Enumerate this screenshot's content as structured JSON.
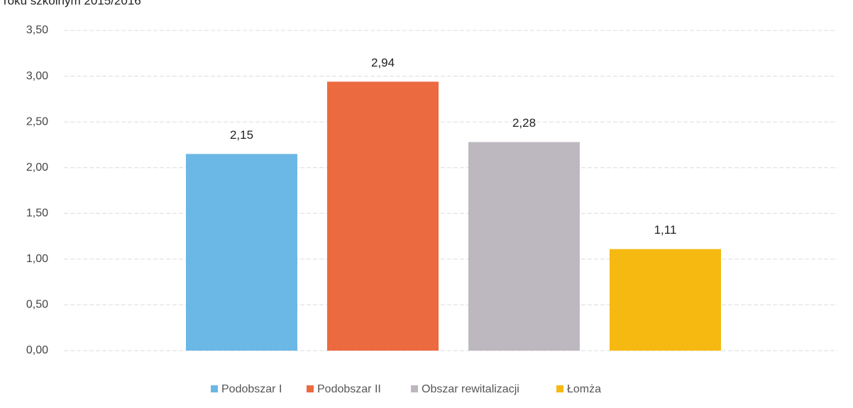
{
  "chart_data": {
    "type": "bar",
    "title": "roku szkolnym 2015/2016",
    "series": [
      {
        "name": "Podobszar I",
        "color": "#6bb7e6",
        "values": [
          2.15
        ],
        "value_labels": [
          "2,15"
        ]
      },
      {
        "name": "Podobszar II",
        "color": "#ec6a3f",
        "values": [
          2.94
        ],
        "value_labels": [
          "2,94"
        ]
      },
      {
        "name": "Obszar rewitalizacji",
        "color": "#bdb8bf",
        "values": [
          2.28
        ],
        "value_labels": [
          "2,28"
        ]
      },
      {
        "name": "Łomża",
        "color": "#f5b912",
        "values": [
          1.11
        ],
        "value_labels": [
          "1,11"
        ]
      }
    ],
    "ylim": [
      0,
      3.5
    ],
    "yticks": [
      {
        "value": 0,
        "label": "0,00"
      },
      {
        "value": 0.5,
        "label": "0,50"
      },
      {
        "value": 1,
        "label": "1,00"
      },
      {
        "value": 1.5,
        "label": "1,50"
      },
      {
        "value": 2,
        "label": "2,00"
      },
      {
        "value": 2.5,
        "label": "2,50"
      },
      {
        "value": 3,
        "label": "3,00"
      },
      {
        "value": 3.5,
        "label": "3,50"
      }
    ],
    "grid": true,
    "legend": "bottom"
  }
}
